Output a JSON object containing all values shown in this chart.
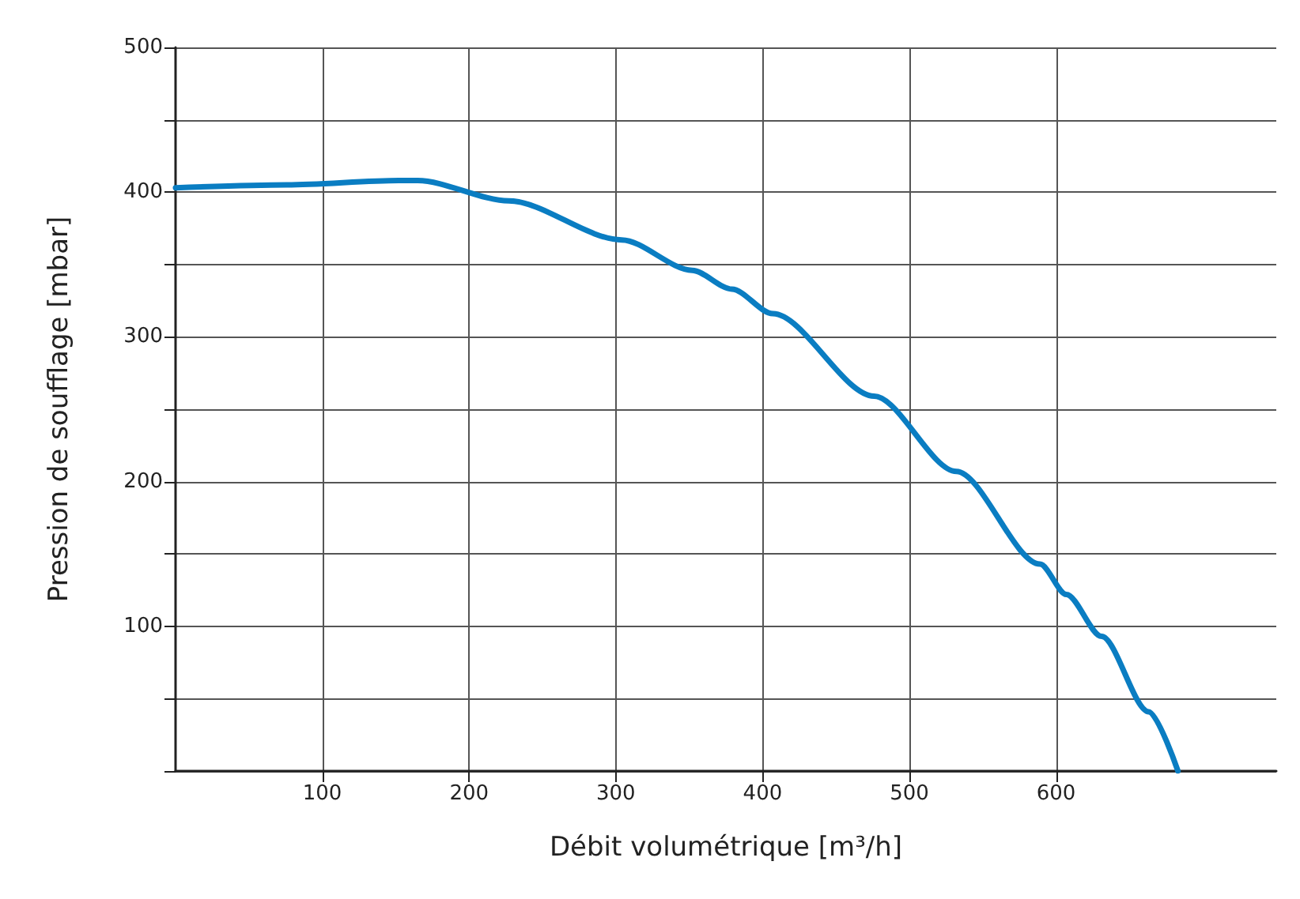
{
  "chart_data": {
    "type": "line",
    "xlabel": "Débit volumétrique [m³/h]",
    "ylabel": "Pression de soufflage [mbar]",
    "xlim": [
      0,
      750
    ],
    "xticks": [
      100,
      200,
      300,
      400,
      500,
      600
    ],
    "ylim": [
      0,
      500
    ],
    "yticks": [
      {
        "value": 0,
        "label": null
      },
      {
        "value": 50,
        "label": null
      },
      100,
      {
        "value": 150,
        "label": null
      },
      200,
      {
        "value": 250,
        "label": null
      },
      300,
      {
        "value": 350,
        "label": null
      },
      400,
      {
        "value": 450,
        "label": null
      },
      500
    ],
    "grid": true,
    "marker": "none",
    "line_style": "solid",
    "series": [
      {
        "color": "#0a7dc2",
        "x": [
          0,
          76,
          152,
          165,
          227,
          304,
          352,
          379,
          407,
          476,
          532,
          589,
          607,
          631,
          663,
          683
        ],
        "values": [
          403,
          405,
          408,
          408,
          394,
          367,
          346,
          333,
          316,
          259,
          207,
          143,
          122,
          93,
          41,
          0
        ]
      }
    ]
  }
}
